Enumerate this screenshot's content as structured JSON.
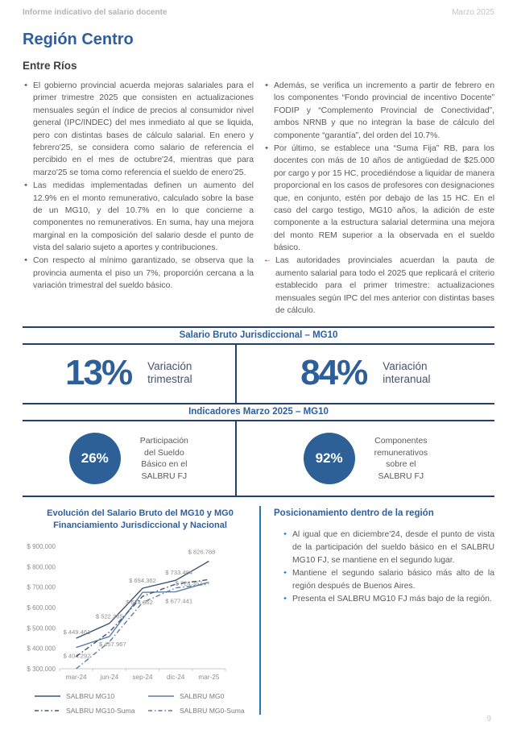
{
  "header": {
    "doc_title": "Informe indicativo del salario docente",
    "date": "Marzo 2025"
  },
  "page": {
    "title": "Región Centro",
    "subtitle": "Entre Ríos",
    "number": "9"
  },
  "glyphs": {
    "bullet": "✦",
    "red_arrow": "←"
  },
  "intro": {
    "left": [
      "El gobierno provincial acuerda mejoras salariales para el primer trimestre 2025 que consisten en actualizaciones mensuales según el índice de precios al consumidor nivel general (IPC/INDEC) del mes inmediato al que se liquida, pero con distintas bases de cálculo salarial. En enero y febrero'25, se considera como salario de referencia el percibido en el mes de octubre'24, mientras que para marzo'25 se toma como referencia el sueldo de enero'25.",
      "Las medidas implementadas definen un aumento del 12.9% en el monto remunerativo, calculado sobre la base de un MG10, y del 10.7% en lo que concierne a componentes no remunerativos. En suma, hay una mejora marginal en la composición del salario desde el punto de vista del salario sujeto a aportes y contribuciones.",
      "Con respecto al mínimo garantizado, se observa que la provincia aumenta el piso un 7%, proporción cercana a la variación trimestral del sueldo básico."
    ],
    "right": [
      "Además, se verifica un incremento a partir de febrero en los componentes “Fondo provincial de incentivo Docente” FODIP y “Complemento Provincial de Conectividad”, ambos NRNB y que no integran la base de cálculo del componente “garantía”, del orden del 10.7%.",
      "Por último, se establece una “Suma Fija” RB, para los docentes con más de 10 años de antigüedad de $25.000 por cargo y por 15 HC, procediéndose a liquidar de manera proporcional en los casos de profesores con designaciones que, en conjunto, estén por debajo de las 15 HC. En el caso del cargo testigo, MG10 años, la adición de este componente a la estructura salarial determina una mejora del monto REM superior a la observada en el sueldo básico.",
      "Las autoridades provinciales acuerdan la pauta de aumento salarial para todo el 2025 que replicará el criterio establecido para el primer trimestre: actualizaciones mensuales según IPC del mes anterior con distintas bases de cálculo."
    ]
  },
  "stats": {
    "section1_title": "Salario Bruto Jurisdiccional – MG10",
    "section1": [
      {
        "value": "13%",
        "label": "Variación\ntrimestral"
      },
      {
        "value": "84%",
        "label": "Variación\ninteranual"
      }
    ],
    "section2_title": "Indicadores Marzo 2025 – MG10",
    "section2": [
      {
        "value": "26%",
        "label": "Participación\ndel Sueldo\nBásico en el\nSALBRU FJ"
      },
      {
        "value": "92%",
        "label": "Componentes\nremunerativos\nsobre el\nSALBRU FJ"
      }
    ]
  },
  "chart_data": {
    "type": "line",
    "title": "Evolución del Salario Bruto del MG10 y MG0\nFinanciamiento Jurisdiccional y Nacional",
    "categories": [
      "mar-24",
      "jun-24",
      "sep-24",
      "dic-24",
      "mar-25"
    ],
    "ylim": [
      300000,
      900000
    ],
    "yticks": [
      "$ 300.000",
      "$ 400.000",
      "$ 500.000",
      "$ 600.000",
      "$ 700.000",
      "$ 800.000",
      "$ 900.000"
    ],
    "grid": false,
    "legend_position": "bottom",
    "series": [
      {
        "name": "SALBRU MG10",
        "style": "solid",
        "color": "#3f5676",
        "values": [
          449461,
          522365,
          694362,
          733484,
          826788
        ],
        "labels": [
          "$ 449.461",
          "$ 522.365",
          "$ 694.362",
          "$ 733.484",
          "$ 826.788"
        ],
        "label_side": "above"
      },
      {
        "name": "SALBRU MG0",
        "style": "solid",
        "color": "#5b7ba6",
        "values": [
          404292,
          457967,
          674362,
          677441,
          724357
        ],
        "labels": [
          "$ 404.292",
          "$ 457.967",
          "$ 674.362",
          "$ 677.441",
          "$ 724.357"
        ],
        "label_side": "below"
      },
      {
        "name": "SALBRU MG10-Suma",
        "style": "dashdot",
        "color": "#3f5676",
        "values": [
          360000,
          480000,
          655000,
          715000,
          737000
        ],
        "estimated": true
      },
      {
        "name": "SALBRU MG0-Suma",
        "style": "dashdot",
        "color": "#5b7ba6",
        "values": [
          300000,
          432000,
          625000,
          696000,
          716000
        ],
        "estimated": true
      }
    ]
  },
  "positioning": {
    "title": "Posicionamiento dentro de la región",
    "bullets": [
      "Al igual que en diciembre'24, desde el punto de vista de la participación del sueldo básico en el SALBRU MG10 FJ, se mantiene en el segundo lugar.",
      "Mantiene el segundo salario básico más alto de la región después de Buenos Aires.",
      "Presenta el SALBRU MG10 FJ más bajo de la región."
    ]
  }
}
